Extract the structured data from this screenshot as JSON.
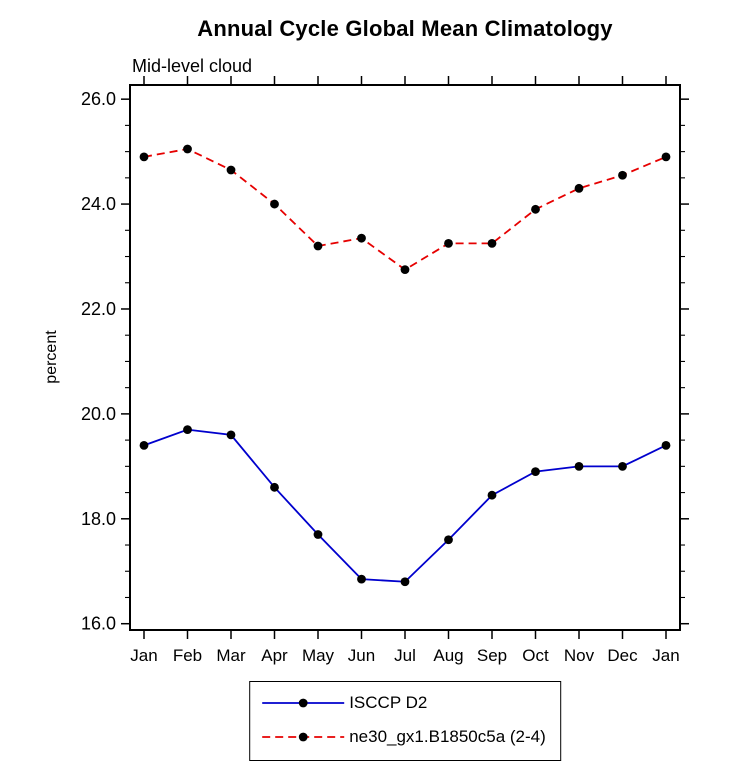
{
  "chart_data": {
    "type": "line",
    "title": "Annual Cycle Global Mean Climatology",
    "subtitle": "Mid-level cloud",
    "ylabel": "percent",
    "xlabel": "",
    "categories": [
      "Jan",
      "Feb",
      "Mar",
      "Apr",
      "May",
      "Jun",
      "Jul",
      "Aug",
      "Sep",
      "Oct",
      "Nov",
      "Dec",
      "Jan"
    ],
    "ylim": [
      16.0,
      26.0
    ],
    "yticks": [
      16.0,
      18.0,
      20.0,
      22.0,
      24.0,
      26.0
    ],
    "ytick_labels": [
      "16.0",
      "18.0",
      "20.0",
      "22.0",
      "24.0",
      "26.0"
    ],
    "minor_tick_step": 0.5,
    "grid": false,
    "legend_position": "bottom-center",
    "frame_color": "#000000",
    "marker_color": "#000000",
    "series": [
      {
        "name": "ISCCP D2",
        "color": "#0000cd",
        "dash": "solid",
        "values": [
          19.4,
          19.7,
          19.6,
          18.6,
          17.7,
          16.85,
          16.8,
          17.6,
          18.45,
          18.9,
          19.0,
          19.0,
          19.4
        ]
      },
      {
        "name": "ne30_gx1.B1850c5a (2-4)",
        "color": "#e60000",
        "dash": "dashed",
        "values": [
          24.9,
          25.05,
          24.65,
          24.0,
          23.2,
          23.35,
          22.75,
          23.25,
          23.25,
          23.9,
          24.3,
          24.55,
          24.9
        ]
      }
    ]
  }
}
